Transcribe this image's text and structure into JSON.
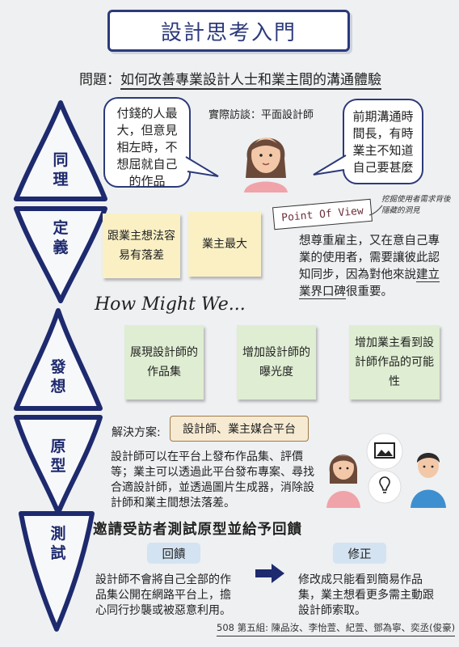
{
  "title": "設計思考入門",
  "problem": {
    "prefix": "問題：",
    "text": "如何改善專業設計人士和業主間的溝通體驗"
  },
  "stages": [
    "同理",
    "定義",
    "發想",
    "原型",
    "測試"
  ],
  "empathize": {
    "left_bubble": "付錢的人最大，但意見相左時，不想屈就自己的作品",
    "interview_label": "實際訪談：平面設計師",
    "right_bubble": "前期溝通時間長，有時業主不知道自己要甚麼"
  },
  "define": {
    "notes": [
      "跟業主想法容易有落差",
      "業主最大"
    ],
    "pov_label": "Point Of View",
    "pov_note": "挖掘使用者需求背後隱藏的洞見",
    "pov_text_1": "想尊重雇主，又在意自己專業的使用者，需要讓彼此認知同步，因為對他來說",
    "pov_text_highlight": "建立業界口碑",
    "pov_text_2": "很重要。"
  },
  "ideate": {
    "hmw": "How Might We...",
    "notes": [
      "展現設計師的作品集",
      "增加設計師的曝光度",
      "增加業主看到設計師作品的可能性"
    ]
  },
  "prototype": {
    "solution_label": "解決方案:",
    "solution": "設計師、業主媒合平台",
    "description": "設計師可以在平台上發布作品集、評價等；業主可以透過此平台發布專案、尋找合適設計師，並透過圖片生成器，消除設計師和業主間想法落差。"
  },
  "test": {
    "heading": "邀請受訪者測試原型並給予回饋",
    "feedback_label": "回饋",
    "feedback_text": "設計師不會將自己全部的作品集公開在網路平台上，擔心同行抄襲或被惡意利用。",
    "revision_label": "修正",
    "revision_text": "修改成只能看到簡易作品集，業主想看更多需主動跟設計師索取。"
  },
  "credits": "508 第五組: 陳品汝、李怡萱、紀萱、鄧為寧、奕丞(俊豪)"
}
